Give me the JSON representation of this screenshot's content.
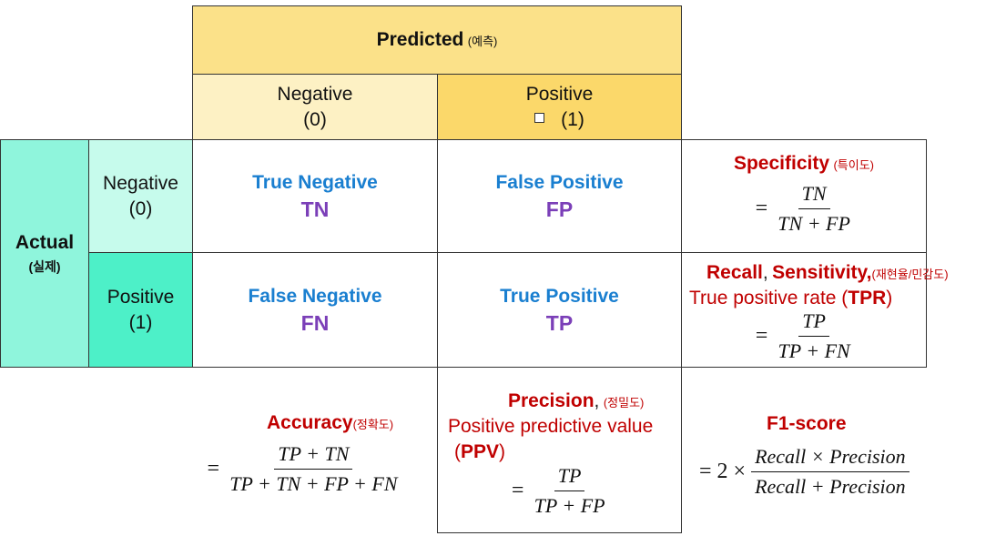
{
  "predicted_header": {
    "title": "Predicted",
    "ko": "(예측)"
  },
  "predicted_columns": [
    {
      "label": "Negative",
      "value": "(0)"
    },
    {
      "label": "Positive",
      "value": "(1)"
    }
  ],
  "actual_header": {
    "title": "Actual",
    "ko": "(실제)"
  },
  "actual_rows": [
    {
      "label": "Negative",
      "value": "(0)"
    },
    {
      "label": "Positive",
      "value": "(1)"
    }
  ],
  "quadrants": {
    "tn": {
      "name": "True Negative",
      "abbr": "TN"
    },
    "fp": {
      "name": "False Positive",
      "abbr": "FP"
    },
    "fn": {
      "name": "False Negative",
      "abbr": "FN"
    },
    "tp": {
      "name": "True Positive",
      "abbr": "TP"
    }
  },
  "specificity": {
    "name": "Specificity",
    "ko": "(특이도)",
    "eq": "=",
    "num": "TN",
    "den": "TN + FP"
  },
  "recall": {
    "name": "Recall",
    "comma": ",",
    "name2": "Sensitivity,",
    "ko": "(재현율/민감도)",
    "sub": "True positive rate (",
    "sub_bold": "TPR",
    "sub_end": ")",
    "eq": "=",
    "num": "TP",
    "den": "TP + FN"
  },
  "accuracy": {
    "name": "Accuracy",
    "ko": "(정확도)",
    "eq": "=",
    "num": "TP + TN",
    "den": "TP + TN + FP + FN"
  },
  "precision": {
    "name": "Precision",
    "comma": ",",
    "ko": "(정밀도)",
    "sub": "Positive predictive value",
    "sub2": "(",
    "sub2_bold": "PPV",
    "sub2_end": ")",
    "eq": "=",
    "num": "TP",
    "den": "TP + FP"
  },
  "f1": {
    "name": "F1-score",
    "eq": "= 2 ×",
    "num": "Recall × Precision",
    "den": "Recall + Precision"
  },
  "colors": {
    "predicted_header": "#fbe189",
    "predicted_negative": "#fdf1c4",
    "predicted_positive": "#fbd86a",
    "actual_header": "#8ff5dc",
    "actual_negative": "#c6fbec",
    "actual_positive": "#4df0c8",
    "quadrant_name": "#1a7fd0",
    "quadrant_abbr": "#7b3fb8",
    "metric": "#c00000"
  }
}
